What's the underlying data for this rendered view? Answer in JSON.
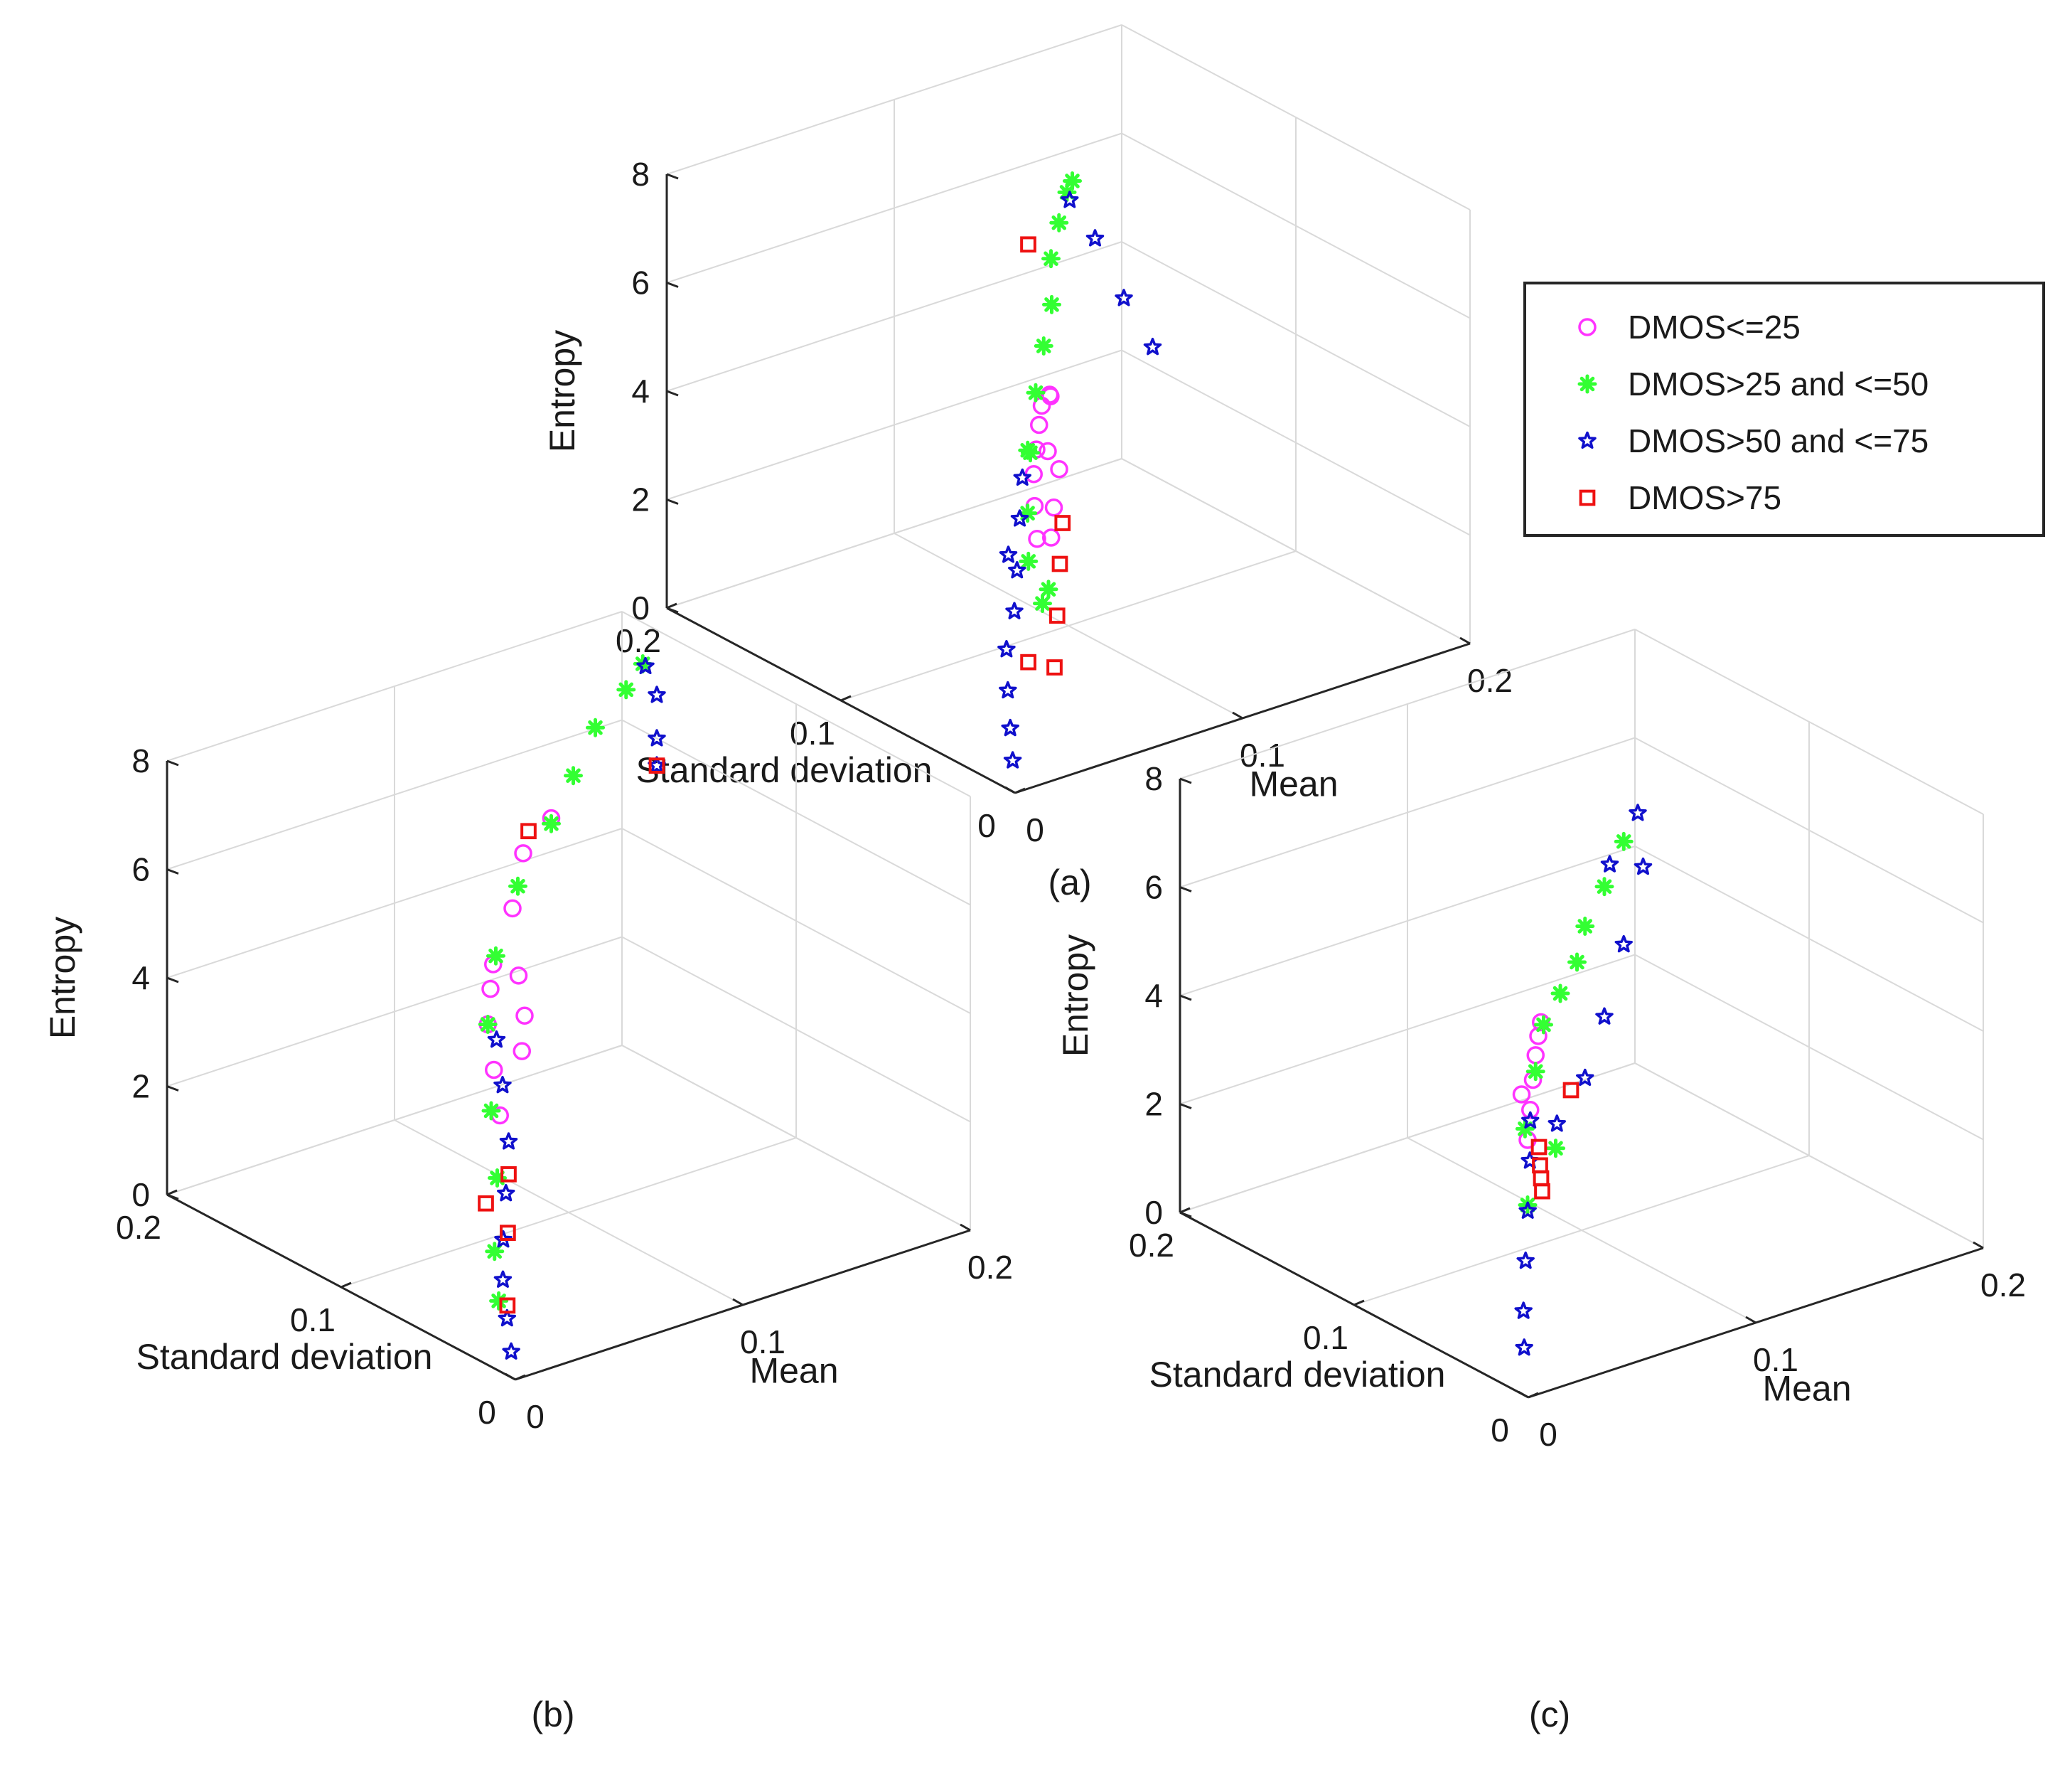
{
  "chart_data": [
    {
      "type": "scatter3d",
      "caption": "(a)",
      "xlabel": "Mean",
      "ylabel": "Standard deviation",
      "zlabel": "Entropy",
      "xlim": [
        0,
        0.2
      ],
      "ylim": [
        0,
        0.2
      ],
      "zlim": [
        0,
        8
      ],
      "xticks": [
        "0",
        "0.1",
        "0.2"
      ],
      "yticks": [
        "0",
        "0.1",
        "0.2"
      ],
      "zticks": [
        "0",
        "2",
        "4",
        "6",
        "8"
      ],
      "grid": true,
      "series": [
        {
          "name": "DMOS<=25",
          "points": [
            [
              0.025,
              0.02,
              4.0
            ],
            [
              0.03,
              0.028,
              4.4
            ],
            [
              0.035,
              0.035,
              4.8
            ],
            [
              0.04,
              0.04,
              5.1
            ],
            [
              0.045,
              0.045,
              5.4
            ],
            [
              0.05,
              0.05,
              5.6
            ],
            [
              0.045,
              0.04,
              5.0
            ],
            [
              0.055,
              0.052,
              5.7
            ],
            [
              0.06,
              0.058,
              5.5
            ],
            [
              0.04,
              0.03,
              4.2
            ],
            [
              0.035,
              0.025,
              3.8
            ],
            [
              0.05,
              0.04,
              4.6
            ]
          ]
        },
        {
          "name": "DMOS>25 and <=50",
          "points": [
            [
              0.025,
              0.025,
              3.5
            ],
            [
              0.03,
              0.032,
              4.2
            ],
            [
              0.04,
              0.045,
              5.0
            ],
            [
              0.055,
              0.06,
              5.6
            ],
            [
              0.07,
              0.075,
              6.0
            ],
            [
              0.085,
              0.09,
              6.3
            ],
            [
              0.1,
              0.11,
              6.6
            ],
            [
              0.115,
              0.125,
              6.8
            ],
            [
              0.13,
              0.14,
              6.9
            ],
            [
              0.14,
              0.15,
              6.8
            ],
            [
              0.03,
              0.02,
              3.0
            ],
            [
              0.035,
              0.03,
              2.5
            ],
            [
              0.045,
              0.05,
              4.8
            ]
          ]
        },
        {
          "name": "DMOS>50 and <=75",
          "points": [
            [
              0.002,
              0.004,
              0.5
            ],
            [
              0.004,
              0.008,
              1.0
            ],
            [
              0.006,
              0.012,
              1.6
            ],
            [
              0.01,
              0.018,
              2.2
            ],
            [
              0.015,
              0.02,
              2.8
            ],
            [
              0.02,
              0.025,
              3.4
            ],
            [
              0.025,
              0.03,
              4.2
            ],
            [
              0.03,
              0.035,
              4.8
            ],
            [
              0.135,
              0.145,
              6.6
            ],
            [
              0.15,
              0.15,
              5.6
            ],
            [
              0.155,
              0.14,
              4.6
            ],
            [
              0.16,
              0.13,
              3.8
            ],
            [
              0.02,
              0.03,
              3.6
            ]
          ]
        },
        {
          "name": "DMOS>75",
          "points": [
            [
              0.04,
              0.025,
              4.0
            ],
            [
              0.035,
              0.02,
              3.4
            ],
            [
              0.03,
              0.015,
              2.6
            ],
            [
              0.025,
              0.01,
              1.8
            ],
            [
              0.015,
              0.012,
              2.0
            ],
            [
              0.09,
              0.11,
              7.0
            ]
          ]
        }
      ]
    },
    {
      "type": "scatter3d",
      "caption": "(b)",
      "xlabel": "Mean",
      "ylabel": "Standard deviation",
      "zlabel": "Entropy",
      "xlim": [
        0,
        0.2
      ],
      "ylim": [
        0,
        0.2
      ],
      "zlim": [
        0,
        8
      ],
      "xticks": [
        "0",
        "0.1",
        "0.2"
      ],
      "yticks": [
        "0",
        "0.1",
        "0.2"
      ],
      "zticks": [
        "0",
        "2",
        "4",
        "6",
        "8"
      ],
      "grid": true,
      "series": [
        {
          "name": "DMOS<=25",
          "points": [
            [
              0.02,
              0.035,
              4.0
            ],
            [
              0.025,
              0.045,
              4.6
            ],
            [
              0.03,
              0.055,
              5.2
            ],
            [
              0.035,
              0.06,
              5.7
            ],
            [
              0.04,
              0.065,
              6.0
            ],
            [
              0.06,
              0.08,
              6.5
            ],
            [
              0.08,
              0.1,
              6.9
            ],
            [
              0.1,
              0.11,
              7.1
            ],
            [
              0.045,
              0.055,
              4.5
            ],
            [
              0.05,
              0.06,
              5.0
            ],
            [
              0.055,
              0.07,
              5.5
            ]
          ]
        },
        {
          "name": "DMOS>25 and <=50",
          "points": [
            [
              0.015,
              0.03,
              3.0
            ],
            [
              0.02,
              0.04,
              4.0
            ],
            [
              0.03,
              0.055,
              5.2
            ],
            [
              0.045,
              0.07,
              6.0
            ],
            [
              0.07,
              0.09,
              6.6
            ],
            [
              0.1,
              0.11,
              7.0
            ],
            [
              0.125,
              0.13,
              7.2
            ],
            [
              0.15,
              0.15,
              7.4
            ],
            [
              0.175,
              0.165,
              7.5
            ],
            [
              0.19,
              0.175,
              7.6
            ],
            [
              0.01,
              0.025,
              1.8
            ],
            [
              0.008,
              0.02,
              1.0
            ]
          ]
        },
        {
          "name": "DMOS>50 and <=75",
          "points": [
            [
              0.002,
              0.005,
              0.4
            ],
            [
              0.004,
              0.01,
              0.9
            ],
            [
              0.006,
              0.015,
              1.5
            ],
            [
              0.01,
              0.02,
              2.1
            ],
            [
              0.015,
              0.025,
              2.8
            ],
            [
              0.02,
              0.03,
              3.6
            ],
            [
              0.025,
              0.04,
              4.4
            ],
            [
              0.03,
              0.05,
              5.0
            ],
            [
              0.195,
              0.18,
              7.4
            ],
            [
              0.2,
              0.18,
              6.8
            ],
            [
              0.2,
              0.18,
              6.0
            ],
            [
              0.2,
              0.18,
              5.5
            ]
          ]
        },
        {
          "name": "DMOS>75",
          "points": [
            [
              0.008,
              0.015,
              1.0
            ],
            [
              0.012,
              0.02,
              2.2
            ],
            [
              0.02,
              0.03,
              3.0
            ],
            [
              0.01,
              0.03,
              2.6
            ],
            [
              0.09,
              0.11,
              7.0
            ],
            [
              0.2,
              0.18,
              5.5
            ]
          ]
        }
      ]
    },
    {
      "type": "scatter3d",
      "caption": "(c)",
      "xlabel": "Mean",
      "ylabel": "Standard deviation",
      "zlabel": "Entropy",
      "xlim": [
        0,
        0.2
      ],
      "ylim": [
        0,
        0.2
      ],
      "zlim": [
        0,
        8
      ],
      "xticks": [
        "0",
        "0.1",
        "0.2"
      ],
      "yticks": [
        "0",
        "0.1",
        "0.2"
      ],
      "zticks": [
        "0",
        "2",
        "4",
        "6",
        "8"
      ],
      "grid": true,
      "series": [
        {
          "name": "DMOS<=25",
          "points": [
            [
              0.015,
              0.02,
              4.2
            ],
            [
              0.02,
              0.025,
              4.6
            ],
            [
              0.025,
              0.03,
              5.0
            ],
            [
              0.03,
              0.035,
              5.3
            ],
            [
              0.035,
              0.04,
              5.5
            ],
            [
              0.04,
              0.045,
              5.6
            ],
            [
              0.02,
              0.03,
              4.8
            ]
          ]
        },
        {
          "name": "DMOS>25 and <=50",
          "points": [
            [
              0.015,
              0.02,
              3.0
            ],
            [
              0.02,
              0.028,
              4.2
            ],
            [
              0.03,
              0.035,
              5.0
            ],
            [
              0.045,
              0.05,
              5.4
            ],
            [
              0.06,
              0.06,
              5.6
            ],
            [
              0.075,
              0.07,
              5.8
            ],
            [
              0.09,
              0.085,
              6.0
            ],
            [
              0.11,
              0.1,
              6.2
            ],
            [
              0.13,
              0.115,
              6.5
            ],
            [
              0.035,
              0.03,
              3.6
            ]
          ]
        },
        {
          "name": "DMOS>50 and <=75",
          "points": [
            [
              0.002,
              0.005,
              0.8
            ],
            [
              0.004,
              0.008,
              1.4
            ],
            [
              0.008,
              0.012,
              2.2
            ],
            [
              0.012,
              0.016,
              3.0
            ],
            [
              0.016,
              0.02,
              3.8
            ],
            [
              0.02,
              0.025,
              4.4
            ],
            [
              0.12,
              0.11,
              6.3
            ],
            [
              0.14,
              0.12,
              6.8
            ],
            [
              0.15,
              0.13,
              5.5
            ],
            [
              0.13,
              0.115,
              4.6
            ],
            [
              0.11,
              0.1,
              3.8
            ],
            [
              0.09,
              0.085,
              3.2
            ],
            [
              0.07,
              0.075,
              2.8
            ]
          ]
        },
        {
          "name": "DMOS>75",
          "points": [
            [
              0.02,
              0.02,
              4.0
            ],
            [
              0.022,
              0.022,
              3.6
            ],
            [
              0.024,
              0.024,
              3.3
            ],
            [
              0.026,
              0.026,
              3.0
            ],
            [
              0.08,
              0.08,
              3.2
            ]
          ]
        }
      ]
    }
  ],
  "legend": {
    "placement": "right of panel (a)",
    "entries": [
      {
        "label": "DMOS<=25",
        "marker": "circle",
        "color": "#ff33ff"
      },
      {
        "label": "DMOS>25 and <=50",
        "marker": "asterisk",
        "color": "#33ff33"
      },
      {
        "label": "DMOS>50 and <=75",
        "marker": "pentagram",
        "color": "#1010cc"
      },
      {
        "label": "DMOS>75",
        "marker": "square",
        "color": "#ee1111"
      }
    ]
  }
}
